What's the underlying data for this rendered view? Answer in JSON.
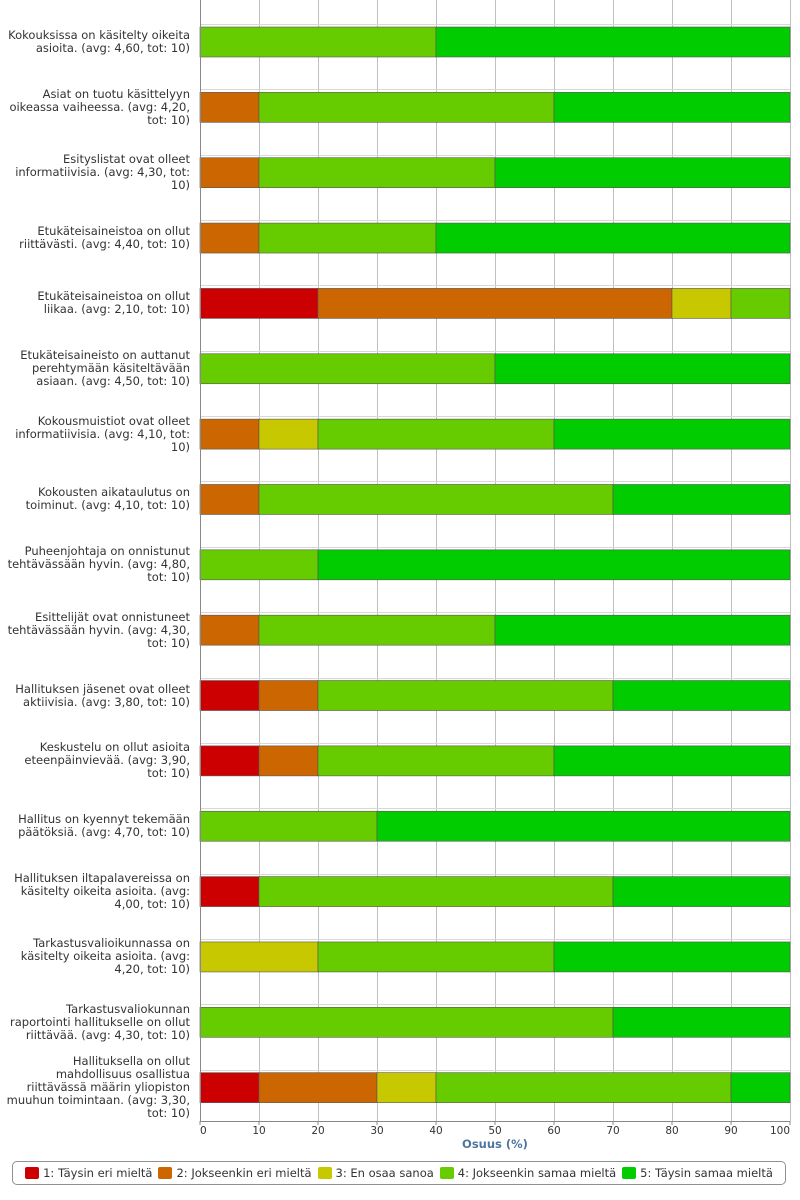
{
  "chart_data": {
    "type": "bar",
    "orientation": "horizontal",
    "stacked": true,
    "xlabel": "Osuus (%)",
    "xlim": [
      0,
      100
    ],
    "xticks": [
      0,
      10,
      20,
      30,
      40,
      50,
      60,
      70,
      80,
      90,
      100
    ],
    "grid": true,
    "legend_position": "bottom",
    "categories": [
      "Kokouksissa on käsitelty oikeita asioita. (avg: 4,60, tot: 10)",
      "Asiat on tuotu käsittelyyn oikeassa vaiheessa. (avg: 4,20, tot: 10)",
      "Esityslistat ovat olleet informatiivisia. (avg: 4,30, tot: 10)",
      "Etukäteisaineistoa on ollut riittävästi. (avg: 4,40, tot: 10)",
      "Etukäteisaineistoa on ollut liikaa. (avg: 2,10, tot: 10)",
      "Etukäteisaineisto on auttanut perehtymään käsiteltävään asiaan. (avg: 4,50, tot: 10)",
      "Kokousmuistiot ovat olleet informatiivisia. (avg: 4,10, tot: 10)",
      "Kokousten aikataulutus on toiminut. (avg: 4,10, tot: 10)",
      "Puheenjohtaja on onnistunut tehtävässään hyvin. (avg: 4,80, tot: 10)",
      "Esittelijät ovat onnistuneet tehtävässään hyvin. (avg: 4,30, tot: 10)",
      "Hallituksen jäsenet ovat olleet aktiivisia. (avg: 3,80, tot: 10)",
      "Keskustelu on ollut asioita eteenpäinvievää. (avg: 3,90, tot: 10)",
      "Hallitus on kyennyt tekemään päätöksiä. (avg: 4,70, tot: 10)",
      "Hallituksen iltapalavereissa on käsitelty oikeita asioita. (avg: 4,00, tot: 10)",
      "Tarkastusvalioikunnassa on käsitelty oikeita asioita. (avg: 4,20, tot: 10)",
      "Tarkastusvaliokunnan raportointi hallitukselle on ollut riittävää. (avg: 4,30, tot: 10)",
      "Hallituksella on ollut mahdollisuus osallistua riittävässä määrin yliopiston muuhun toimintaan. (avg: 3,30, tot: 10)"
    ],
    "series": [
      {
        "name": "1: Täysin eri mieltä",
        "color": "#cc0000",
        "values": [
          0,
          0,
          0,
          0,
          20,
          0,
          0,
          0,
          0,
          0,
          10,
          10,
          0,
          10,
          0,
          0,
          10
        ]
      },
      {
        "name": "2: Jokseenkin eri mieltä",
        "color": "#cc6600",
        "values": [
          0,
          10,
          10,
          10,
          60,
          0,
          10,
          10,
          0,
          10,
          10,
          10,
          0,
          0,
          0,
          0,
          20
        ]
      },
      {
        "name": "3: En osaa sanoa",
        "color": "#c8c800",
        "values": [
          0,
          0,
          0,
          0,
          10,
          0,
          10,
          0,
          0,
          0,
          0,
          0,
          0,
          0,
          20,
          0,
          10
        ]
      },
      {
        "name": "4: Jokseenkin samaa mieltä",
        "color": "#66cc00",
        "values": [
          40,
          50,
          40,
          30,
          10,
          50,
          40,
          60,
          20,
          40,
          50,
          40,
          30,
          60,
          40,
          70,
          50
        ]
      },
      {
        "name": "5: Täysin samaa mieltä",
        "color": "#00cc00",
        "values": [
          60,
          40,
          50,
          60,
          0,
          50,
          40,
          30,
          80,
          50,
          30,
          40,
          70,
          30,
          40,
          30,
          10
        ]
      }
    ]
  }
}
